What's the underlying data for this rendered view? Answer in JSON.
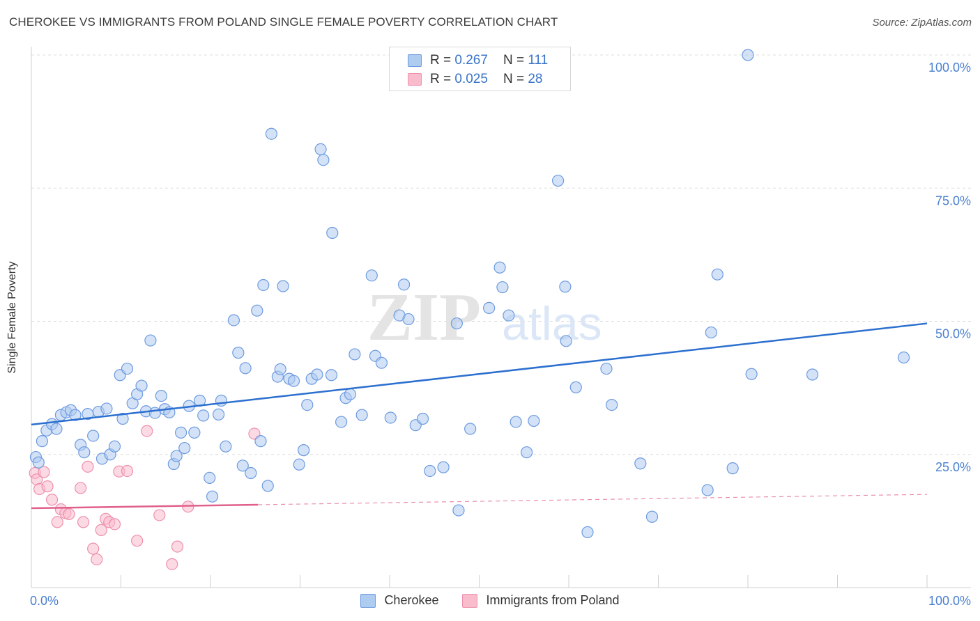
{
  "title": "CHEROKEE VS IMMIGRANTS FROM POLAND SINGLE FEMALE POVERTY CORRELATION CHART",
  "source": "Source: ZipAtlas.com",
  "watermark": {
    "zip": "ZIP",
    "atlas": "atlas"
  },
  "legend_top": [
    {
      "r_label": "R =",
      "r_value": "0.267",
      "n_label": "N =",
      "n_value": "111"
    },
    {
      "r_label": "R =",
      "r_value": "0.025",
      "n_label": "N =",
      "n_value": "28"
    }
  ],
  "colors": {
    "cherokee_fill": "#aecbf0",
    "cherokee_stroke": "#6d9be0",
    "cherokee_line": "#2b6fcf",
    "poland_fill": "#f9bccd",
    "poland_stroke": "#ee8fab",
    "poland_line": "#e0608a",
    "axis_text": "#4a7fd0",
    "grid": "#dddddd"
  },
  "chart_data": {
    "type": "scatter",
    "title": "CHEROKEE VS IMMIGRANTS FROM POLAND SINGLE FEMALE POVERTY CORRELATION CHART",
    "xlabel": "",
    "ylabel": "Single Female Poverty",
    "xlim": [
      0,
      100
    ],
    "ylim": [
      0,
      100
    ],
    "x_tick_labels": {
      "left": "0.0%",
      "right": "100.0%"
    },
    "y_ticks": [
      {
        "value": 25,
        "label": "25.0%"
      },
      {
        "value": 50,
        "label": "50.0%"
      },
      {
        "value": 75,
        "label": "75.0%"
      },
      {
        "value": 100,
        "label": "100.0%"
      }
    ],
    "legend": [
      "Cherokee",
      "Immigrants from Poland"
    ],
    "series": [
      {
        "name": "Cherokee",
        "r": 0.267,
        "n": 111,
        "trend": {
          "x": [
            0,
            100
          ],
          "y": [
            30.6,
            49.6
          ],
          "dashed_from": null
        },
        "points": [
          [
            0.5,
            24.5
          ],
          [
            0.8,
            23.5
          ],
          [
            1.2,
            27.5
          ],
          [
            1.7,
            29.5
          ],
          [
            2.3,
            30.7
          ],
          [
            2.8,
            29.8
          ],
          [
            3.3,
            32.4
          ],
          [
            3.9,
            32.9
          ],
          [
            4.4,
            33.3
          ],
          [
            4.9,
            32.4
          ],
          [
            5.5,
            26.8
          ],
          [
            5.9,
            25.4
          ],
          [
            6.3,
            32.6
          ],
          [
            6.9,
            28.5
          ],
          [
            7.5,
            33.0
          ],
          [
            7.9,
            24.2
          ],
          [
            8.4,
            33.6
          ],
          [
            8.8,
            25.0
          ],
          [
            9.3,
            26.5
          ],
          [
            9.9,
            39.9
          ],
          [
            10.2,
            31.7
          ],
          [
            10.7,
            41.1
          ],
          [
            11.3,
            34.6
          ],
          [
            11.8,
            36.3
          ],
          [
            12.3,
            37.9
          ],
          [
            12.8,
            33.1
          ],
          [
            13.3,
            46.4
          ],
          [
            13.8,
            32.8
          ],
          [
            14.5,
            36.0
          ],
          [
            14.9,
            33.5
          ],
          [
            15.4,
            32.9
          ],
          [
            15.9,
            23.2
          ],
          [
            16.2,
            24.7
          ],
          [
            16.7,
            29.1
          ],
          [
            17.1,
            26.2
          ],
          [
            17.6,
            34.1
          ],
          [
            18.2,
            29.1
          ],
          [
            18.8,
            35.1
          ],
          [
            19.2,
            32.3
          ],
          [
            19.9,
            20.6
          ],
          [
            20.2,
            17.1
          ],
          [
            20.9,
            32.5
          ],
          [
            21.2,
            35.1
          ],
          [
            21.7,
            26.5
          ],
          [
            22.6,
            50.2
          ],
          [
            23.1,
            44.1
          ],
          [
            23.6,
            22.9
          ],
          [
            23.9,
            41.2
          ],
          [
            24.5,
            21.5
          ],
          [
            25.2,
            52.0
          ],
          [
            25.6,
            27.5
          ],
          [
            25.9,
            56.8
          ],
          [
            26.4,
            19.1
          ],
          [
            26.8,
            85.2
          ],
          [
            27.5,
            39.6
          ],
          [
            27.8,
            41.0
          ],
          [
            28.1,
            56.6
          ],
          [
            28.8,
            39.2
          ],
          [
            29.3,
            38.8
          ],
          [
            29.9,
            23.1
          ],
          [
            30.4,
            25.8
          ],
          [
            30.8,
            34.3
          ],
          [
            31.3,
            39.2
          ],
          [
            31.9,
            40.0
          ],
          [
            32.3,
            82.3
          ],
          [
            32.6,
            80.3
          ],
          [
            33.5,
            39.9
          ],
          [
            33.6,
            66.6
          ],
          [
            34.6,
            31.1
          ],
          [
            35.1,
            35.6
          ],
          [
            35.6,
            36.3
          ],
          [
            36.1,
            43.8
          ],
          [
            36.9,
            32.4
          ],
          [
            38.0,
            58.6
          ],
          [
            38.4,
            43.5
          ],
          [
            39.1,
            42.2
          ],
          [
            40.1,
            31.9
          ],
          [
            41.1,
            51.1
          ],
          [
            41.6,
            56.9
          ],
          [
            42.1,
            50.4
          ],
          [
            42.9,
            30.5
          ],
          [
            43.7,
            31.7
          ],
          [
            44.5,
            21.9
          ],
          [
            46.0,
            22.6
          ],
          [
            47.5,
            49.6
          ],
          [
            47.7,
            14.5
          ],
          [
            49.0,
            29.8
          ],
          [
            51.1,
            52.5
          ],
          [
            52.3,
            60.1
          ],
          [
            52.6,
            56.4
          ],
          [
            53.3,
            51.1
          ],
          [
            54.1,
            31.1
          ],
          [
            55.3,
            25.4
          ],
          [
            56.1,
            31.3
          ],
          [
            58.8,
            76.4
          ],
          [
            59.6,
            56.5
          ],
          [
            59.7,
            46.3
          ],
          [
            60.8,
            37.6
          ],
          [
            62.1,
            10.4
          ],
          [
            64.2,
            41.1
          ],
          [
            64.8,
            34.3
          ],
          [
            68.0,
            23.3
          ],
          [
            69.3,
            13.3
          ],
          [
            75.5,
            18.3
          ],
          [
            75.9,
            47.9
          ],
          [
            76.6,
            58.8
          ],
          [
            78.3,
            22.4
          ],
          [
            80.0,
            100.0
          ],
          [
            80.4,
            40.1
          ],
          [
            87.2,
            40.0
          ],
          [
            97.4,
            43.2
          ]
        ]
      },
      {
        "name": "Immigrants from Poland",
        "r": 0.025,
        "n": 28,
        "trend": {
          "x": [
            0,
            100
          ],
          "y": [
            14.9,
            17.5
          ],
          "solid_to_x": 25.3
        },
        "points": [
          [
            0.4,
            21.5
          ],
          [
            0.6,
            20.3
          ],
          [
            0.9,
            18.5
          ],
          [
            1.4,
            21.7
          ],
          [
            1.8,
            19.0
          ],
          [
            2.3,
            16.5
          ],
          [
            2.9,
            12.3
          ],
          [
            3.3,
            14.7
          ],
          [
            3.8,
            14.0
          ],
          [
            4.2,
            13.8
          ],
          [
            5.5,
            18.7
          ],
          [
            5.8,
            12.3
          ],
          [
            6.3,
            22.7
          ],
          [
            6.9,
            7.3
          ],
          [
            7.3,
            5.3
          ],
          [
            7.8,
            10.8
          ],
          [
            8.3,
            12.9
          ],
          [
            8.7,
            12.3
          ],
          [
            9.3,
            11.9
          ],
          [
            9.8,
            21.8
          ],
          [
            10.7,
            21.9
          ],
          [
            11.8,
            8.8
          ],
          [
            12.9,
            29.4
          ],
          [
            14.3,
            13.6
          ],
          [
            15.7,
            4.4
          ],
          [
            16.3,
            7.7
          ],
          [
            17.5,
            15.2
          ],
          [
            24.9,
            28.9
          ]
        ]
      }
    ]
  }
}
